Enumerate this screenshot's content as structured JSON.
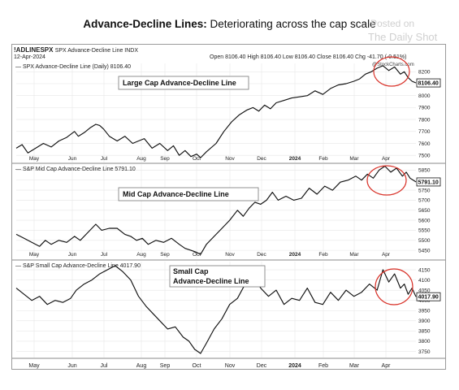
{
  "title_bold": "Advance-Decline Lines:",
  "title_rest": " Deteriorating across the cap scale",
  "watermark_line1": "Posted on",
  "watermark_line2": "The Daily Shot",
  "header": {
    "symbol": "!ADLINESPX",
    "symbol_desc": "SPX Advance-Decline Line INDX",
    "date": "12-Apr-2024",
    "ohlc": "Open 8106.40  High 8106.40  Low 8106.40  Close 8106.40  Chg -41.70 (-0.51%)",
    "credit": "@StockCharts.com"
  },
  "months": [
    "May",
    "Jun",
    "Jul",
    "Aug",
    "Sep",
    "Oct",
    "Nov",
    "Dec",
    "2024",
    "Feb",
    "Mar",
    "Apr"
  ],
  "chart_data": [
    {
      "type": "line",
      "legend": "SPX Advance-Decline Line (Daily) 8106.40",
      "label": "Large Cap Advance-Decline Line",
      "last_value": "8106.40",
      "ylim": [
        7440,
        8270
      ],
      "yticks": [
        7500,
        7600,
        7700,
        7800,
        7900,
        8000,
        8100,
        8200
      ],
      "x": [
        0,
        6,
        12,
        20,
        28,
        36,
        44,
        52,
        60,
        64,
        70,
        76,
        82,
        86,
        90,
        96,
        104,
        112,
        120,
        126,
        132,
        140,
        148,
        156,
        162,
        168,
        174,
        180,
        186,
        190,
        196,
        206,
        214,
        222,
        230,
        238,
        244,
        250,
        256,
        262,
        268,
        276,
        284,
        292,
        300,
        308,
        316,
        324,
        332,
        340,
        348,
        354,
        360,
        366,
        372,
        378,
        384,
        390,
        396,
        400,
        404,
        408,
        412
      ],
      "values": [
        7560,
        7590,
        7520,
        7560,
        7600,
        7570,
        7620,
        7650,
        7700,
        7660,
        7690,
        7730,
        7760,
        7750,
        7720,
        7660,
        7620,
        7660,
        7600,
        7620,
        7640,
        7560,
        7600,
        7540,
        7580,
        7500,
        7540,
        7490,
        7510,
        7480,
        7530,
        7600,
        7700,
        7780,
        7840,
        7880,
        7900,
        7870,
        7920,
        7890,
        7940,
        7960,
        7980,
        7990,
        8000,
        8040,
        8010,
        8060,
        8090,
        8100,
        8120,
        8140,
        8180,
        8200,
        8230,
        8250,
        8210,
        8240,
        8180,
        8200,
        8150,
        8120,
        8106.4
      ]
    },
    {
      "type": "line",
      "legend": "S&P Mid Cap Advance-Decline Line 5791.10",
      "label": "Mid Cap Advance-Decline Line",
      "last_value": "5791.10",
      "ylim": [
        5410,
        5880
      ],
      "yticks": [
        5450,
        5500,
        5550,
        5600,
        5650,
        5700,
        5750,
        5800,
        5850
      ],
      "x": [
        0,
        8,
        16,
        24,
        30,
        36,
        44,
        52,
        60,
        66,
        74,
        82,
        88,
        96,
        104,
        112,
        118,
        124,
        130,
        136,
        144,
        152,
        160,
        168,
        174,
        180,
        186,
        190,
        196,
        204,
        212,
        220,
        228,
        234,
        240,
        246,
        252,
        258,
        264,
        270,
        278,
        286,
        294,
        302,
        310,
        318,
        326,
        334,
        342,
        350,
        356,
        362,
        368,
        374,
        380,
        386,
        392,
        398,
        402,
        406,
        412
      ],
      "values": [
        5530,
        5510,
        5490,
        5470,
        5500,
        5480,
        5500,
        5490,
        5520,
        5500,
        5540,
        5580,
        5550,
        5560,
        5560,
        5530,
        5520,
        5500,
        5510,
        5480,
        5500,
        5490,
        5510,
        5480,
        5460,
        5450,
        5440,
        5430,
        5480,
        5520,
        5560,
        5600,
        5650,
        5620,
        5660,
        5690,
        5680,
        5700,
        5740,
        5700,
        5720,
        5700,
        5710,
        5760,
        5730,
        5770,
        5750,
        5790,
        5800,
        5820,
        5800,
        5830,
        5810,
        5850,
        5870,
        5840,
        5860,
        5820,
        5840,
        5810,
        5791.1
      ]
    },
    {
      "type": "line",
      "legend": "S&P Small Cap Advance-Decline Line 4017.90",
      "label_line1": "Small Cap",
      "label_line2": "Advance-Decline Line",
      "last_value": "4017.90",
      "ylim": [
        3720,
        4190
      ],
      "yticks": [
        3750,
        3800,
        3850,
        3900,
        3950,
        4000,
        4050,
        4100,
        4150
      ],
      "x": [
        0,
        8,
        16,
        24,
        32,
        40,
        48,
        56,
        62,
        70,
        78,
        86,
        94,
        102,
        110,
        118,
        126,
        134,
        140,
        148,
        156,
        164,
        172,
        178,
        184,
        190,
        196,
        204,
        212,
        220,
        228,
        236,
        244,
        252,
        260,
        268,
        276,
        284,
        292,
        300,
        308,
        316,
        324,
        332,
        340,
        348,
        356,
        364,
        372,
        378,
        384,
        390,
        396,
        400,
        404,
        408,
        412
      ],
      "values": [
        4060,
        4030,
        4000,
        4020,
        3980,
        4000,
        3990,
        4010,
        4050,
        4080,
        4100,
        4130,
        4150,
        4170,
        4140,
        4100,
        4020,
        3970,
        3940,
        3900,
        3860,
        3870,
        3820,
        3800,
        3760,
        3740,
        3790,
        3860,
        3910,
        3980,
        4010,
        4080,
        4120,
        4060,
        4020,
        4050,
        3980,
        4010,
        4000,
        4060,
        3990,
        3980,
        4040,
        4000,
        4050,
        4020,
        4040,
        4080,
        4050,
        4150,
        4090,
        4130,
        4060,
        4080,
        4030,
        4060,
        4017.9
      ]
    }
  ]
}
